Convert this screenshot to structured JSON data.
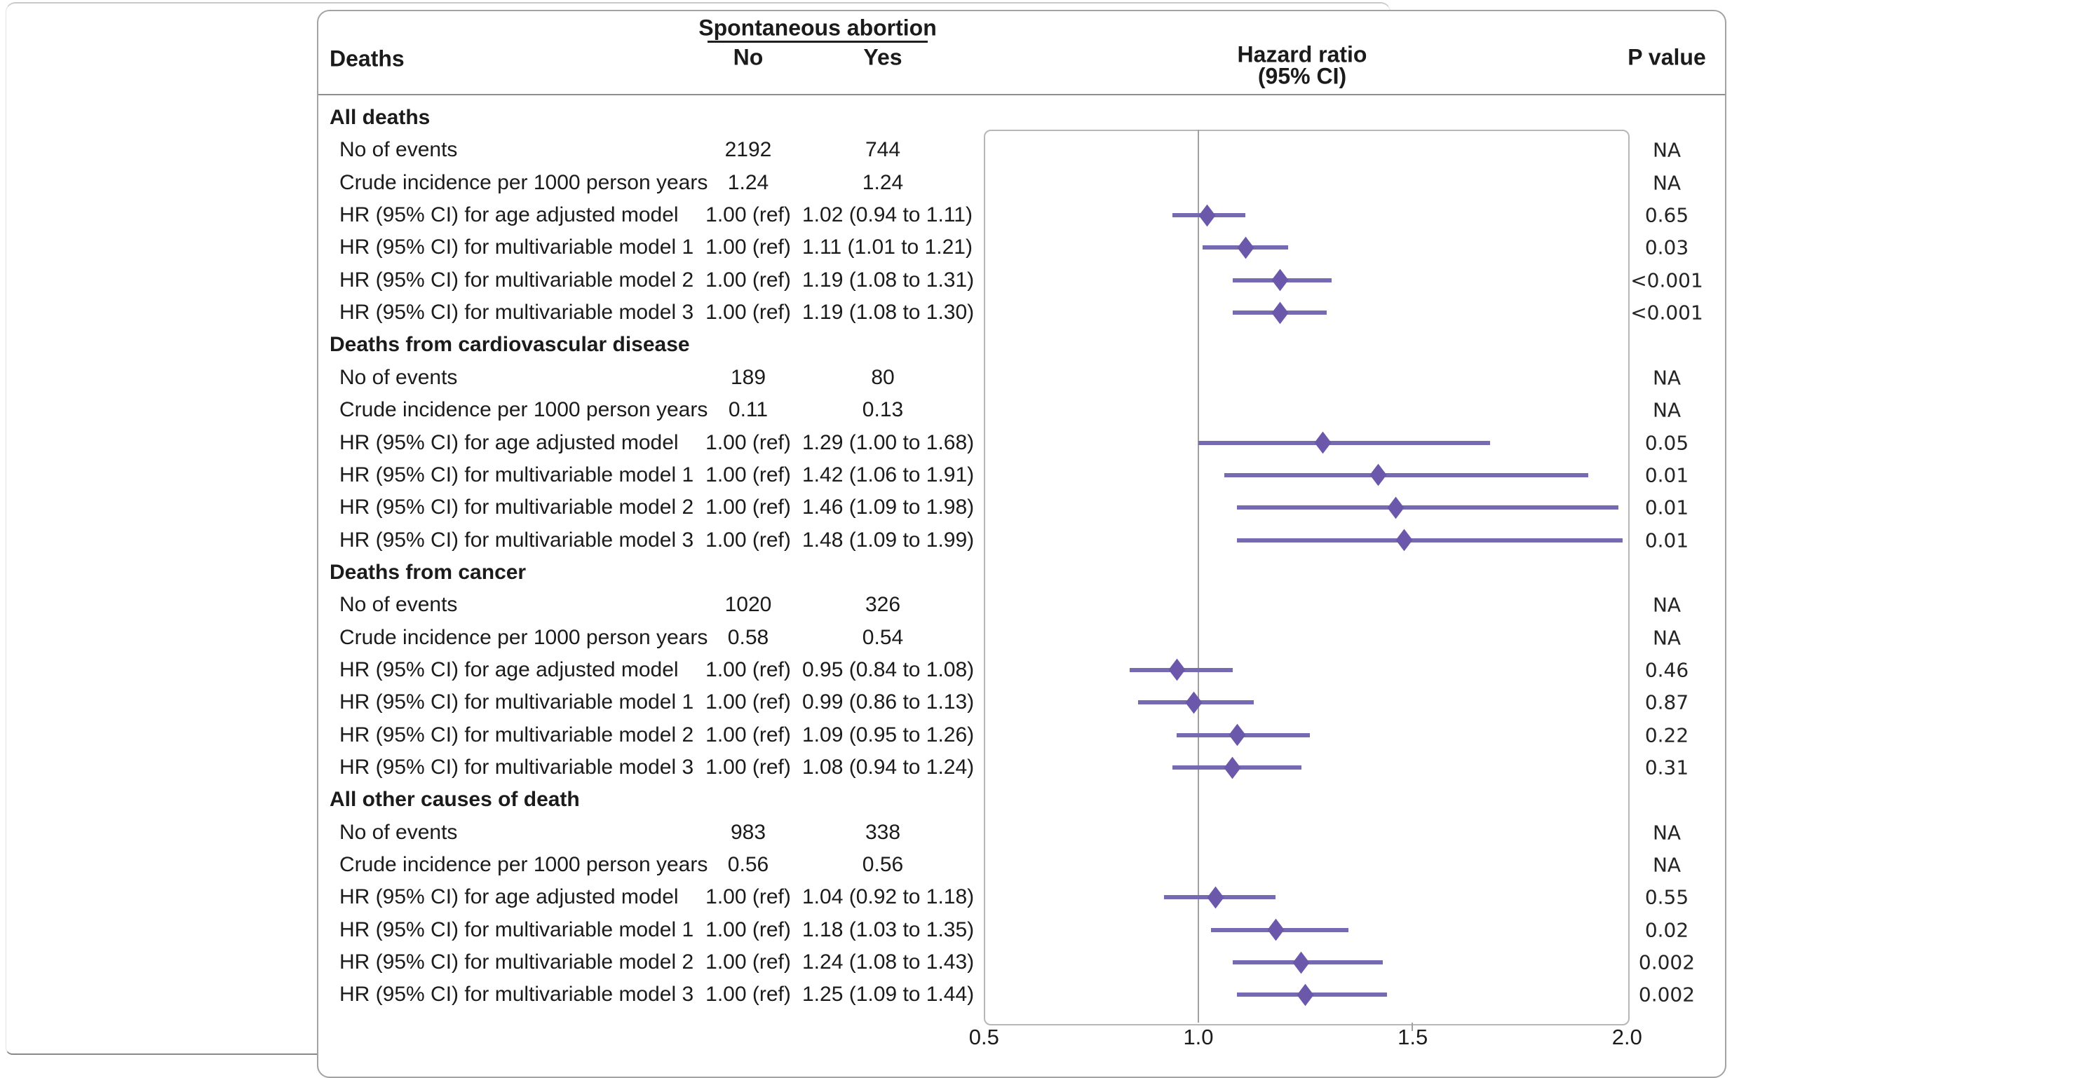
{
  "header": {
    "deaths": "Deaths",
    "group": "Spontaneous abortion",
    "col_no": "No",
    "col_yes": "Yes",
    "hr_line1": "Hazard ratio",
    "hr_line2": "(95% CI)",
    "p": "P value"
  },
  "axis": {
    "ticks": [
      {
        "label": "0.5",
        "value": 0.5
      },
      {
        "label": "1.0",
        "value": 1.0
      },
      {
        "label": "1.5",
        "value": 1.5
      },
      {
        "label": "2.0",
        "value": 2.0
      }
    ],
    "reference_value": 1.0
  },
  "colors": {
    "diamond": "#6b58ab",
    "ci_line": "#766ab3",
    "figure_border": "#a3a3a3",
    "plot_border": "#b7b7b7",
    "text": "#1b1b1b"
  },
  "sections": [
    {
      "title": "All deaths",
      "rows": [
        {
          "label": "No of events",
          "no": "2192",
          "yes": "744",
          "p": "NA"
        },
        {
          "label": "Crude incidence per 1000 person years",
          "no": "1.24",
          "yes": "1.24",
          "p": "NA"
        },
        {
          "label": "HR (95% CI) for age adjusted model",
          "no": "1.00 (ref)",
          "yes": "1.02 (0.94 to 1.11)",
          "p": "0.65",
          "hr": 1.02,
          "lo": 0.94,
          "hi": 1.11
        },
        {
          "label": "HR (95% CI) for multivariable model 1",
          "no": "1.00 (ref)",
          "yes": "1.11 (1.01 to 1.21)",
          "p": "0.03",
          "hr": 1.11,
          "lo": 1.01,
          "hi": 1.21
        },
        {
          "label": "HR (95% CI) for multivariable model 2",
          "no": "1.00 (ref)",
          "yes": "1.19 (1.08 to 1.31)",
          "p": "<0.001",
          "hr": 1.19,
          "lo": 1.08,
          "hi": 1.31
        },
        {
          "label": "HR (95% CI) for multivariable model 3",
          "no": "1.00 (ref)",
          "yes": "1.19 (1.08 to 1.30)",
          "p": "<0.001",
          "hr": 1.19,
          "lo": 1.08,
          "hi": 1.3
        }
      ]
    },
    {
      "title": "Deaths from cardiovascular disease",
      "rows": [
        {
          "label": "No of events",
          "no": "189",
          "yes": "80",
          "p": "NA"
        },
        {
          "label": "Crude incidence per 1000 person years",
          "no": "0.11",
          "yes": "0.13",
          "p": "NA"
        },
        {
          "label": "HR (95% CI) for age adjusted model",
          "no": "1.00 (ref)",
          "yes": "1.29 (1.00 to 1.68)",
          "p": "0.05",
          "hr": 1.29,
          "lo": 1.0,
          "hi": 1.68
        },
        {
          "label": "HR (95% CI) for multivariable model 1",
          "no": "1.00 (ref)",
          "yes": "1.42 (1.06 to 1.91)",
          "p": "0.01",
          "hr": 1.42,
          "lo": 1.06,
          "hi": 1.91
        },
        {
          "label": "HR (95% CI) for multivariable model 2",
          "no": "1.00 (ref)",
          "yes": "1.46 (1.09 to 1.98)",
          "p": "0.01",
          "hr": 1.46,
          "lo": 1.09,
          "hi": 1.98
        },
        {
          "label": "HR (95% CI) for multivariable model 3",
          "no": "1.00 (ref)",
          "yes": "1.48 (1.09 to 1.99)",
          "p": "0.01",
          "hr": 1.48,
          "lo": 1.09,
          "hi": 1.99
        }
      ]
    },
    {
      "title": "Deaths from cancer",
      "rows": [
        {
          "label": "No of events",
          "no": "1020",
          "yes": "326",
          "p": "NA"
        },
        {
          "label": "Crude incidence per 1000 person years",
          "no": "0.58",
          "yes": "0.54",
          "p": "NA"
        },
        {
          "label": "HR (95% CI) for age adjusted model",
          "no": "1.00 (ref)",
          "yes": "0.95 (0.84 to 1.08)",
          "p": "0.46",
          "hr": 0.95,
          "lo": 0.84,
          "hi": 1.08
        },
        {
          "label": "HR (95% CI) for multivariable model 1",
          "no": "1.00 (ref)",
          "yes": "0.99 (0.86 to 1.13)",
          "p": "0.87",
          "hr": 0.99,
          "lo": 0.86,
          "hi": 1.13
        },
        {
          "label": "HR (95% CI) for multivariable model 2",
          "no": "1.00 (ref)",
          "yes": "1.09 (0.95 to 1.26)",
          "p": "0.22",
          "hr": 1.09,
          "lo": 0.95,
          "hi": 1.26
        },
        {
          "label": "HR (95% CI) for multivariable model 3",
          "no": "1.00 (ref)",
          "yes": "1.08 (0.94 to 1.24)",
          "p": "0.31",
          "hr": 1.08,
          "lo": 0.94,
          "hi": 1.24
        }
      ]
    },
    {
      "title": "All other causes of death",
      "rows": [
        {
          "label": "No of events",
          "no": "983",
          "yes": "338",
          "p": "NA"
        },
        {
          "label": "Crude incidence per 1000 person years",
          "no": "0.56",
          "yes": "0.56",
          "p": "NA"
        },
        {
          "label": "HR (95% CI) for age adjusted model",
          "no": "1.00 (ref)",
          "yes": "1.04 (0.92 to 1.18)",
          "p": "0.55",
          "hr": 1.04,
          "lo": 0.92,
          "hi": 1.18
        },
        {
          "label": "HR (95% CI) for multivariable model 1",
          "no": "1.00 (ref)",
          "yes": "1.18 (1.03 to 1.35)",
          "p": "0.02",
          "hr": 1.18,
          "lo": 1.03,
          "hi": 1.35
        },
        {
          "label": "HR (95% CI) for multivariable model 2",
          "no": "1.00 (ref)",
          "yes": "1.24 (1.08 to 1.43)",
          "p": "0.002",
          "hr": 1.24,
          "lo": 1.08,
          "hi": 1.43
        },
        {
          "label": "HR (95% CI) for multivariable model 3",
          "no": "1.00 (ref)",
          "yes": "1.25 (1.09 to 1.44)",
          "p": "0.002",
          "hr": 1.25,
          "lo": 1.09,
          "hi": 1.44
        }
      ]
    }
  ],
  "chart_data": {
    "type": "scatter",
    "subtype": "forest-plot",
    "title": "",
    "xlabel": "Hazard ratio (95% CI)",
    "xlim": [
      0.5,
      2.0
    ],
    "x_ticks": [
      0.5,
      1.0,
      1.5,
      2.0
    ],
    "reference_line_x": 1.0,
    "grid": false,
    "marker": "diamond",
    "series": [
      {
        "group": "All deaths",
        "model": "age adjusted model",
        "hr": 1.02,
        "ci": [
          0.94,
          1.11
        ],
        "p": "0.65"
      },
      {
        "group": "All deaths",
        "model": "multivariable model 1",
        "hr": 1.11,
        "ci": [
          1.01,
          1.21
        ],
        "p": "0.03"
      },
      {
        "group": "All deaths",
        "model": "multivariable model 2",
        "hr": 1.19,
        "ci": [
          1.08,
          1.31
        ],
        "p": "<0.001"
      },
      {
        "group": "All deaths",
        "model": "multivariable model 3",
        "hr": 1.19,
        "ci": [
          1.08,
          1.3
        ],
        "p": "<0.001"
      },
      {
        "group": "Deaths from cardiovascular disease",
        "model": "age adjusted model",
        "hr": 1.29,
        "ci": [
          1.0,
          1.68
        ],
        "p": "0.05"
      },
      {
        "group": "Deaths from cardiovascular disease",
        "model": "multivariable model 1",
        "hr": 1.42,
        "ci": [
          1.06,
          1.91
        ],
        "p": "0.01"
      },
      {
        "group": "Deaths from cardiovascular disease",
        "model": "multivariable model 2",
        "hr": 1.46,
        "ci": [
          1.09,
          1.98
        ],
        "p": "0.01"
      },
      {
        "group": "Deaths from cardiovascular disease",
        "model": "multivariable model 3",
        "hr": 1.48,
        "ci": [
          1.09,
          1.99
        ],
        "p": "0.01"
      },
      {
        "group": "Deaths from cancer",
        "model": "age adjusted model",
        "hr": 0.95,
        "ci": [
          0.84,
          1.08
        ],
        "p": "0.46"
      },
      {
        "group": "Deaths from cancer",
        "model": "multivariable model 1",
        "hr": 0.99,
        "ci": [
          0.86,
          1.13
        ],
        "p": "0.87"
      },
      {
        "group": "Deaths from cancer",
        "model": "multivariable model 2",
        "hr": 1.09,
        "ci": [
          0.95,
          1.26
        ],
        "p": "0.22"
      },
      {
        "group": "Deaths from cancer",
        "model": "multivariable model 3",
        "hr": 1.08,
        "ci": [
          0.94,
          1.24
        ],
        "p": "0.31"
      },
      {
        "group": "All other causes of death",
        "model": "age adjusted model",
        "hr": 1.04,
        "ci": [
          0.92,
          1.18
        ],
        "p": "0.55"
      },
      {
        "group": "All other causes of death",
        "model": "multivariable model 1",
        "hr": 1.18,
        "ci": [
          1.03,
          1.35
        ],
        "p": "0.02"
      },
      {
        "group": "All other causes of death",
        "model": "multivariable model 2",
        "hr": 1.24,
        "ci": [
          1.08,
          1.43
        ],
        "p": "0.002"
      },
      {
        "group": "All other causes of death",
        "model": "multivariable model 3",
        "hr": 1.25,
        "ci": [
          1.09,
          1.44
        ],
        "p": "0.002"
      }
    ],
    "counts": {
      "columns": [
        "No",
        "Yes"
      ],
      "no_of_events": {
        "All deaths": [
          2192,
          744
        ],
        "Deaths from cardiovascular disease": [
          189,
          80
        ],
        "Deaths from cancer": [
          1020,
          326
        ],
        "All other causes of death": [
          983,
          338
        ]
      },
      "crude_incidence_per_1000_person_years": {
        "All deaths": [
          1.24,
          1.24
        ],
        "Deaths from cardiovascular disease": [
          0.11,
          0.13
        ],
        "Deaths from cancer": [
          0.58,
          0.54
        ],
        "All other causes of death": [
          0.56,
          0.56
        ]
      }
    }
  }
}
